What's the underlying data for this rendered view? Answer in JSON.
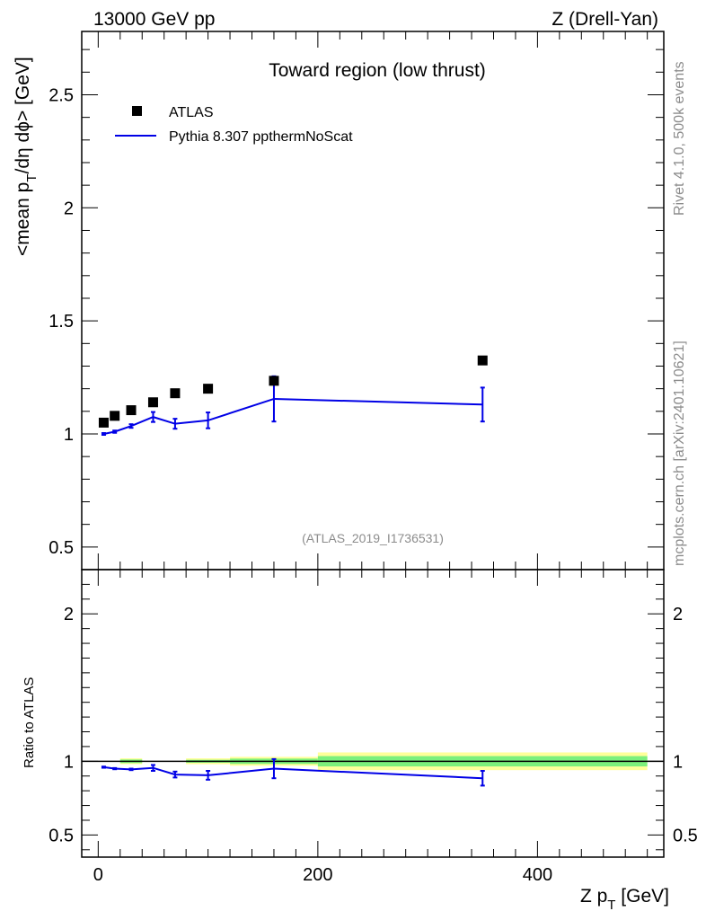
{
  "header": {
    "energy": "13000 GeV pp",
    "process": "Z (Drell-Yan)"
  },
  "side_labels": {
    "rivet": "Rivet 4.1.0,  500k events",
    "mcplots": "mcplots.cern.ch [arXiv:2401.10621]"
  },
  "colors": {
    "mc": "#0000e6",
    "data": "#000000",
    "band_inner": "#7cf07c",
    "band_outer": "#ffff99"
  },
  "chart_data": [
    {
      "type": "scatter",
      "panel": "main",
      "title": "Toward region (low thrust)",
      "ylabel": "<mean p_T/dη dϕ> [GeV]",
      "xlabel": "Z p_T [GeV]",
      "analysis_id": "(ATLAS_2019_I1736531)",
      "xlim": [
        -15,
        515
      ],
      "ylim": [
        0.4,
        2.78
      ],
      "yticks": [
        0.5,
        1,
        1.5,
        2,
        2.5
      ],
      "ytick_labels": [
        "0.5",
        "1",
        "1.5",
        "2",
        "2.5"
      ],
      "legend_location": "top-left",
      "series": [
        {
          "name": "ATLAS",
          "style": "markers",
          "x": [
            5,
            15,
            30,
            50,
            70,
            100,
            160,
            350
          ],
          "y": [
            1.05,
            1.08,
            1.105,
            1.14,
            1.18,
            1.2,
            1.235,
            1.325
          ]
        },
        {
          "name": "Pythia 8.307 ppthermNoScat",
          "style": "line",
          "x": [
            5,
            15,
            30,
            50,
            70,
            100,
            160,
            350
          ],
          "y": [
            1.0,
            1.01,
            1.035,
            1.075,
            1.045,
            1.06,
            1.155,
            1.13
          ],
          "yerr": [
            0.004,
            0.005,
            0.008,
            0.022,
            0.022,
            0.035,
            0.1,
            0.075
          ]
        }
      ]
    },
    {
      "type": "line",
      "panel": "ratio",
      "ylabel": "Ratio to ATLAS",
      "xlabel": "Z p_T [GeV]",
      "xlim": [
        -15,
        515
      ],
      "ylim": [
        0.35,
        2.3
      ],
      "yticks": [
        0.5,
        1,
        2
      ],
      "ytick_labels": [
        "0.5",
        "1",
        "2"
      ],
      "xticks": [
        0,
        200,
        400
      ],
      "xtick_labels": [
        "0",
        "200",
        "400"
      ],
      "reference_line": 1,
      "bands": [
        {
          "x0": 20,
          "x1": 40,
          "inner": 0.012,
          "outer": 0.02
        },
        {
          "x0": 80,
          "x1": 120,
          "inner": 0.01,
          "outer": 0.02
        },
        {
          "x0": 120,
          "x1": 200,
          "inner": 0.018,
          "outer": 0.03
        },
        {
          "x0": 200,
          "x1": 500,
          "inner": 0.035,
          "outer": 0.06
        }
      ],
      "series": [
        {
          "name": "Pythia 8.307 ppthermNoScat / ATLAS",
          "x": [
            5,
            15,
            30,
            50,
            70,
            100,
            160,
            350
          ],
          "y": [
            0.96,
            0.95,
            0.945,
            0.955,
            0.91,
            0.905,
            0.95,
            0.885
          ],
          "yerr": [
            0.004,
            0.004,
            0.005,
            0.02,
            0.02,
            0.03,
            0.065,
            0.05
          ]
        }
      ]
    }
  ]
}
